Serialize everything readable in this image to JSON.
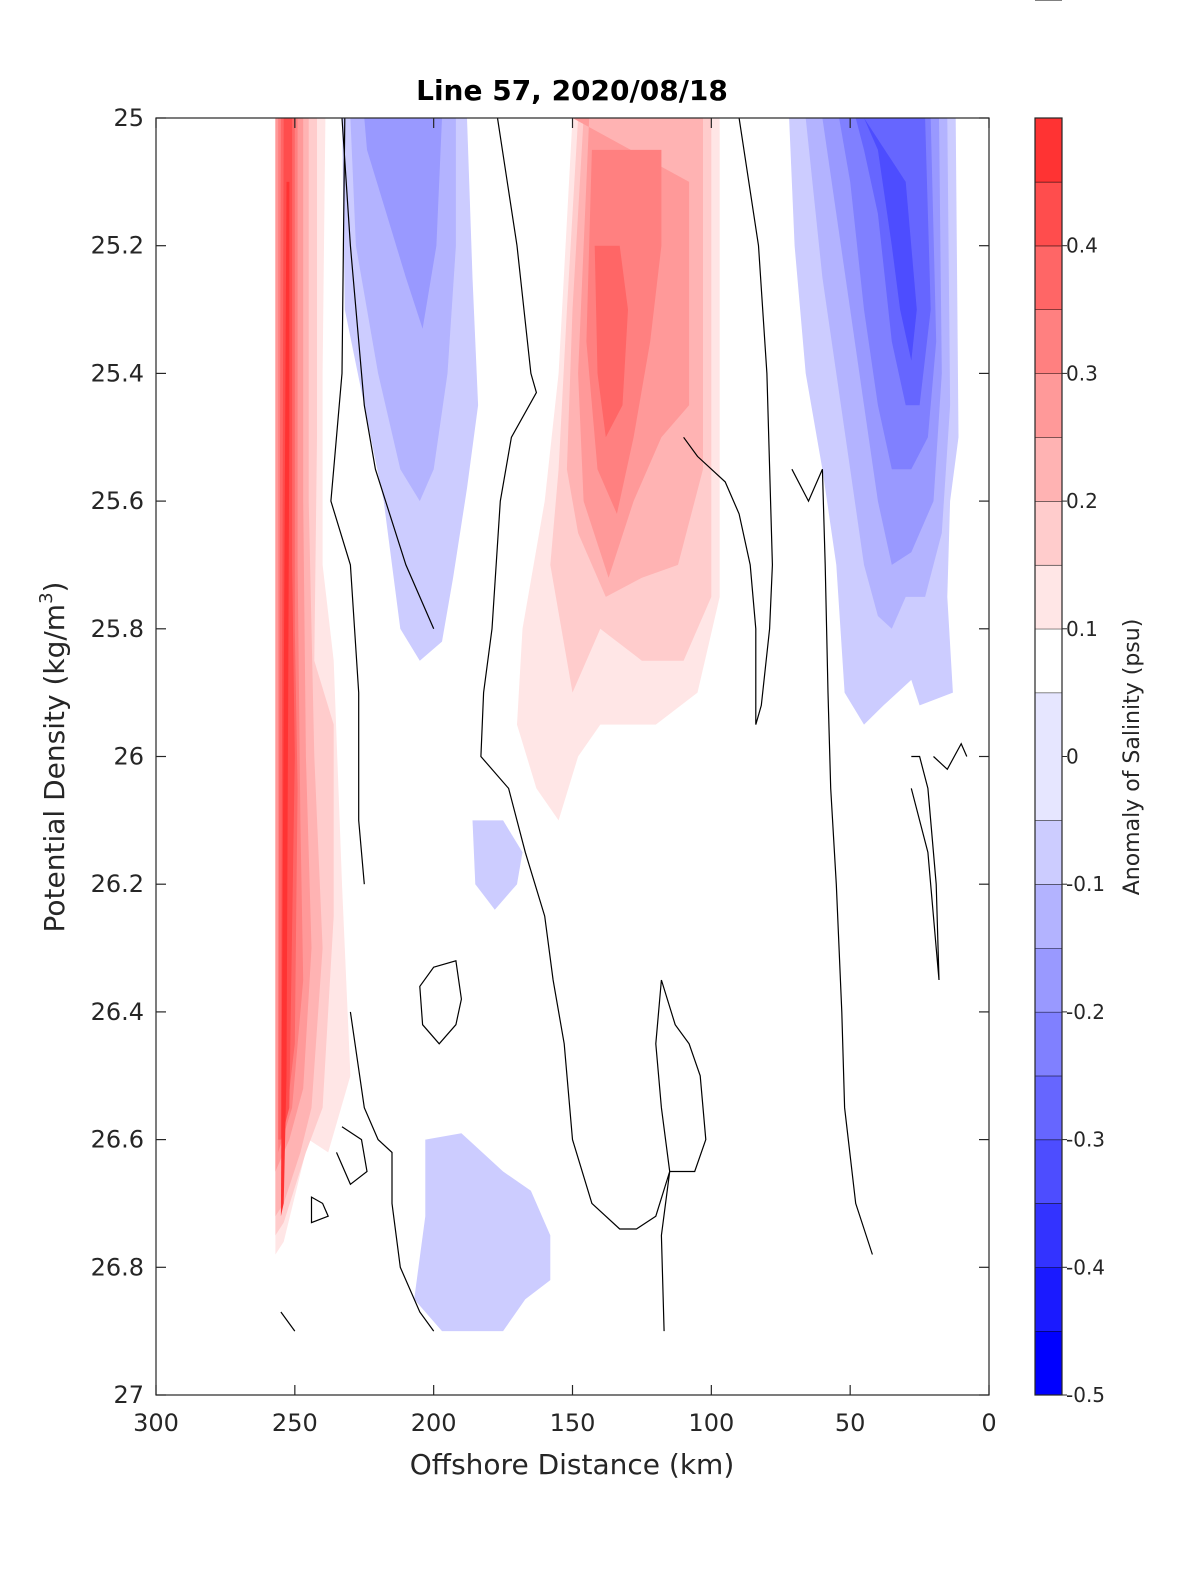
{
  "chart_data": {
    "type": "heatmap",
    "title": "Line 57, 2020/08/18",
    "xlabel": "Offshore Distance (km)",
    "ylabel_main": "Potential Density (kg/m",
    "ylabel_sup": "3",
    "ylabel_close": ")",
    "xlim": [
      300,
      0
    ],
    "ylim": [
      25,
      27
    ],
    "x_reversed": true,
    "y_reversed": true,
    "x_ticks": [
      300,
      250,
      200,
      150,
      100,
      50,
      0
    ],
    "x_tick_labels": [
      "300",
      "250",
      "200",
      "150",
      "100",
      "50",
      "0"
    ],
    "y_ticks": [
      25,
      25.2,
      25.4,
      25.6,
      25.8,
      26,
      26.2,
      26.4,
      26.6,
      26.8,
      27
    ],
    "y_tick_labels": [
      "25",
      "25.2",
      "25.4",
      "25.6",
      "25.8",
      "26",
      "26.2",
      "26.4",
      "26.6",
      "26.8",
      "27"
    ],
    "colorbar": {
      "label": "Anomaly of Salinity (psu)",
      "range": [
        -0.5,
        0.5
      ],
      "levels": [
        -0.5,
        -0.45,
        -0.4,
        -0.35,
        -0.3,
        -0.25,
        -0.2,
        -0.15,
        -0.1,
        -0.05,
        0.05,
        0.1,
        0.15,
        0.2,
        0.25,
        0.3,
        0.35,
        0.4,
        0.45,
        0.5
      ],
      "colors": [
        "#0000ff",
        "#1a1aff",
        "#3333ff",
        "#4d4dff",
        "#6666ff",
        "#8080ff",
        "#9999ff",
        "#b3b3ff",
        "#ccccff",
        "#e6e6ff",
        "#ffffff",
        "#ffe6e6",
        "#ffcccc",
        "#ffb3b3",
        "#ff9999",
        "#ff8080",
        "#ff6666",
        "#ff4d4d",
        "#ff3333",
        "#ff1a1a"
      ],
      "ticks": [
        -0.5,
        -0.4,
        -0.3,
        -0.2,
        -0.1,
        0,
        0.1,
        0.2,
        0.3,
        0.4
      ],
      "tick_labels": [
        "-0.5",
        "-0.4",
        "-0.3",
        "-0.2",
        "-0.1",
        "0",
        "0.1",
        "0.2",
        "0.3",
        "0.4"
      ]
    },
    "anomaly_field": {
      "note_units": "psu",
      "features": [
        {
          "name": "offshore-salty-core",
          "sign": "positive",
          "x_range": [
            233,
            257
          ],
          "y_range": [
            25.0,
            26.8
          ],
          "peak": 0.45
        },
        {
          "name": "offshore-fresh-tongue",
          "sign": "negative",
          "x_range": [
            185,
            230
          ],
          "y_range": [
            25.0,
            25.85
          ],
          "peak": -0.2
        },
        {
          "name": "mid-salty-core",
          "sign": "positive",
          "x_range": [
            95,
            165
          ],
          "y_range": [
            25.0,
            26.35
          ],
          "peak": 0.35
        },
        {
          "name": "nearshore-fresh-wedge",
          "sign": "negative",
          "x_range": [
            12,
            72
          ],
          "y_range": [
            25.0,
            25.95
          ],
          "peak": -0.3
        },
        {
          "name": "deep-fresh-patch",
          "sign": "negative",
          "x_range": [
            158,
            203
          ],
          "y_range": [
            26.6,
            26.9
          ],
          "peak": -0.08
        },
        {
          "name": "small-fresh-patch",
          "sign": "negative",
          "x_range": [
            168,
            186
          ],
          "y_range": [
            26.1,
            26.25
          ],
          "peak": -0.08
        },
        {
          "name": "nearshore-salty-sliver",
          "sign": "positive",
          "x_range": [
            0,
            8
          ],
          "y_range": [
            25.5,
            26.05
          ],
          "peak": 0.1
        }
      ]
    }
  },
  "colors": {
    "axis": "#262626",
    "contour": "#000000",
    "background": "#ffffff"
  }
}
